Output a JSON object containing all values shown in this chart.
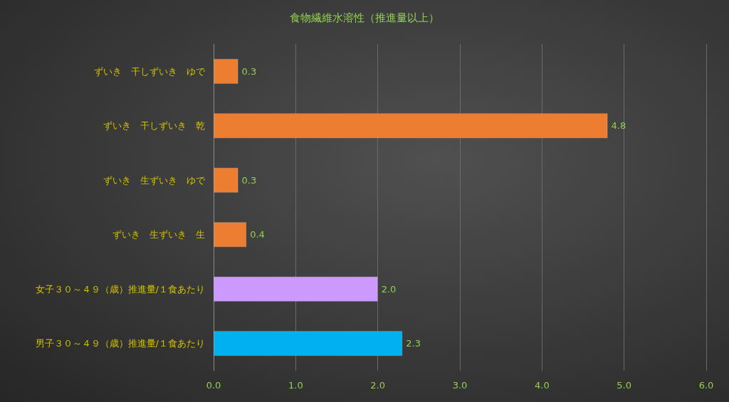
{
  "chart_data": {
    "type": "bar",
    "orientation": "horizontal",
    "title": "食物繊維水溶性（推進量以上）",
    "categories": [
      "ずいき　干しずいき　ゆで",
      "ずいき　干しずいき　乾",
      "ずいき　生ずいき　ゆで",
      "ずいき　生ずいき　生",
      "女子３０～４９（歳）推進量/１食あたり",
      "男子３０～４９（歳）推進量/１食あたり"
    ],
    "values": [
      0.3,
      4.8,
      0.3,
      0.4,
      2.0,
      2.3
    ],
    "colors": [
      "#ed7d31",
      "#ed7d31",
      "#ed7d31",
      "#ed7d31",
      "#cc99ff",
      "#00b0f0"
    ],
    "xlim": [
      0,
      6
    ],
    "xticks": [
      "0.0",
      "1.0",
      "2.0",
      "3.0",
      "4.0",
      "5.0",
      "6.0"
    ],
    "value_labels": [
      "0.3",
      "4.8",
      "0.3",
      "0.4",
      "2.0",
      "2.3"
    ],
    "grid": "x"
  }
}
